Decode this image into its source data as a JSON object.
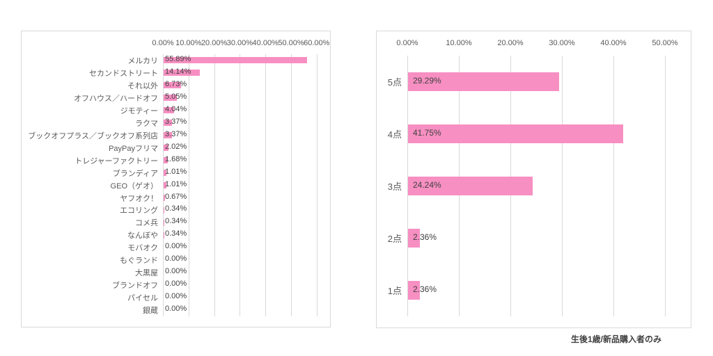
{
  "caption": {
    "text": "生後1歳/新品購入者のみ"
  },
  "colors": {
    "bar": "#f78fc2",
    "gridline": "#d9d9d9",
    "axis_label": "#595959",
    "category_label": "#595959",
    "data_label": "#404040",
    "caption_text": "#3f3f3f",
    "chart_border": "#d9d9d9",
    "background": "#ffffff"
  },
  "chart_data": [
    {
      "type": "bar",
      "orientation": "horizontal",
      "title": "",
      "categories": [
        "メルカリ",
        "セカンドストリート",
        "それ以外",
        "オフハウス／ハードオフ",
        "ジモティー",
        "ラクマ",
        "ブックオフプラス／ブックオフ系列店",
        "PayPayフリマ",
        "トレジャーファクトリー",
        "ブランディア",
        "GEO（ゲオ）",
        "ヤフオク！",
        "エコリング",
        "コメ兵",
        "なんぼや",
        "モバオク",
        "もぐランド",
        "大黒屋",
        "ブランドオフ",
        "パイセル",
        "銀蔵"
      ],
      "values": [
        55.89,
        14.14,
        6.73,
        5.05,
        4.04,
        3.37,
        3.37,
        2.02,
        1.68,
        1.01,
        1.01,
        0.67,
        0.34,
        0.34,
        0.34,
        0.0,
        0.0,
        0.0,
        0.0,
        0.0,
        0.0
      ],
      "value_labels": [
        "55.89%",
        "14.14%",
        "6.73%",
        "5.05%",
        "4.04%",
        "3.37%",
        "3.37%",
        "2.02%",
        "1.68%",
        "1.01%",
        "1.01%",
        "0.67%",
        "0.34%",
        "0.34%",
        "0.34%",
        "0.00%",
        "0.00%",
        "0.00%",
        "0.00%",
        "0.00%",
        "0.00%"
      ],
      "xlim": [
        0,
        60
      ],
      "x_tick_labels": [
        "0.00%",
        "10.00%",
        "20.00%",
        "30.00%",
        "40.00%",
        "50.00%",
        "60.00%"
      ],
      "grid": true,
      "legend": false
    },
    {
      "type": "bar",
      "orientation": "horizontal",
      "title": "",
      "categories": [
        "5点",
        "4点",
        "3点",
        "2点",
        "1点"
      ],
      "values": [
        29.29,
        41.75,
        24.24,
        2.36,
        2.36
      ],
      "value_labels": [
        "29.29%",
        "41.75%",
        "24.24%",
        "2.36%",
        "2.36%"
      ],
      "xlim": [
        0,
        50
      ],
      "x_tick_labels": [
        "0.00%",
        "10.00%",
        "20.00%",
        "30.00%",
        "40.00%",
        "50.00%"
      ],
      "grid": true,
      "legend": false
    }
  ]
}
